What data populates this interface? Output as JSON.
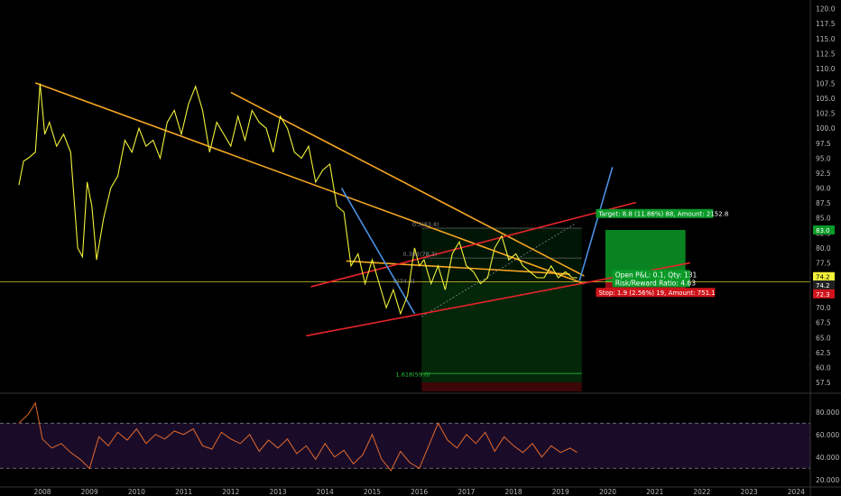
{
  "colors": {
    "background": "#000000",
    "price": "#f2f23a",
    "downtrend": "#f5a623",
    "channel": "#e8232a",
    "wave": "#4a90e2",
    "rsi": "#e4692b",
    "profit_zone": "#0b7a1f",
    "stop_zone": "#7a0b10",
    "horizontal_line": "#c9c92b"
  },
  "chart_data": [
    {
      "type": "line",
      "panel": "price",
      "ylim": [
        56,
        121
      ],
      "xlim": [
        2007.1,
        2024.3
      ],
      "y_ticks": [
        "120.0",
        "117.5",
        "115.0",
        "112.5",
        "110.0",
        "107.5",
        "105.0",
        "102.5",
        "100.0",
        "97.5",
        "95.0",
        "92.5",
        "90.0",
        "87.5",
        "85.0",
        "82.5",
        "80.0",
        "77.5",
        "75.0",
        "72.5",
        "70.0",
        "67.5",
        "65.0",
        "62.5",
        "60.0",
        "57.5"
      ],
      "y_tick_values": [
        120,
        117.5,
        115,
        112.5,
        110,
        107.5,
        105,
        102.5,
        100,
        97.5,
        95,
        92.5,
        90,
        87.5,
        85,
        82.5,
        80,
        77.5,
        75,
        72.5,
        70,
        67.5,
        65,
        62.5,
        60,
        57.5
      ],
      "x_ticks": [
        "2008",
        "2009",
        "2010",
        "2011",
        "2012",
        "2013",
        "2014",
        "2015",
        "2016",
        "2017",
        "2018",
        "2019",
        "2020",
        "2021",
        "2022",
        "2023",
        "2024"
      ],
      "x_tick_values": [
        2008,
        2009,
        2010,
        2011,
        2012,
        2013,
        2014,
        2015,
        2016,
        2017,
        2018,
        2019,
        2020,
        2021,
        2022,
        2023,
        2024
      ],
      "series": [
        {
          "x": [
            2007.5,
            2007.6,
            2007.7,
            2007.85,
            2007.95,
            2008.05,
            2008.15,
            2008.3,
            2008.45,
            2008.6,
            2008.75,
            2008.85,
            2008.95,
            2009.05,
            2009.15,
            2009.3,
            2009.45,
            2009.6,
            2009.75,
            2009.9,
            2010.05,
            2010.2,
            2010.35,
            2010.5,
            2010.65,
            2010.8,
            2010.95,
            2011.1,
            2011.25,
            2011.4,
            2011.55,
            2011.7,
            2011.85,
            2012.0,
            2012.15,
            2012.3,
            2012.45,
            2012.6,
            2012.75,
            2012.9,
            2013.05,
            2013.2,
            2013.35,
            2013.5,
            2013.65,
            2013.8,
            2013.95,
            2014.1,
            2014.25,
            2014.4,
            2014.55,
            2014.7,
            2014.85,
            2015.0,
            2015.15,
            2015.3,
            2015.45,
            2015.6,
            2015.75,
            2015.9,
            2016.0,
            2016.1,
            2016.25,
            2016.4,
            2016.55,
            2016.7,
            2016.85,
            2017.0,
            2017.15,
            2017.3,
            2017.45,
            2017.6,
            2017.75,
            2017.9,
            2018.05,
            2018.2,
            2018.35,
            2018.5,
            2018.65,
            2018.8,
            2018.95,
            2019.1,
            2019.25,
            2019.35
          ],
          "y": [
            90.5,
            94.5,
            95,
            96,
            107.5,
            99,
            101,
            97,
            99,
            96,
            80,
            78.5,
            91,
            87,
            78,
            85,
            90,
            92,
            98,
            96,
            100,
            97,
            98,
            95,
            101,
            103,
            99,
            104,
            107,
            103,
            96,
            101,
            99,
            97,
            102,
            98,
            103,
            101,
            100,
            96,
            102,
            100,
            96,
            95,
            97,
            91,
            93,
            94,
            87,
            86,
            77,
            79,
            74,
            78,
            74,
            70,
            73,
            69,
            72,
            80,
            77,
            78,
            74,
            77,
            73,
            79,
            81,
            77,
            76,
            74,
            75,
            80,
            82,
            78,
            79,
            77,
            76,
            75,
            75,
            77,
            75,
            76,
            75,
            75
          ]
        }
      ],
      "annotations": {
        "target_label": "Target: 8.8 (11.86%) 88, Amount: 2152.8",
        "open_pl_label": "Open P&L: 0.1, Qty: 131",
        "rr_label": "Risk/Reward Ratio: 4.63",
        "stop_label": "Stop: 1.9 (2.56%) 19, Amount: 751.1",
        "fib_1618": "1.618(59.0)",
        "fib_top": "0.5(83.8)",
        "fib_mid": "0.382(78.3)",
        "fib_low": "0(74.3)",
        "target_price": "83.0",
        "current_price": "74.2",
        "entry_price": "74.2",
        "stop_price": "72.3"
      }
    },
    {
      "type": "line",
      "panel": "rsi",
      "ylim": [
        15,
        95
      ],
      "y_ticks": [
        "80.000",
        "60.000",
        "40.000",
        "20.000"
      ],
      "y_tick_values": [
        80,
        60,
        40,
        20
      ],
      "levels": [
        70,
        30
      ],
      "series": [
        {
          "x": [
            2007.5,
            2007.7,
            2007.85,
            2008.0,
            2008.2,
            2008.4,
            2008.6,
            2008.8,
            2009.0,
            2009.2,
            2009.4,
            2009.6,
            2009.8,
            2010.0,
            2010.2,
            2010.4,
            2010.6,
            2010.8,
            2011.0,
            2011.2,
            2011.4,
            2011.6,
            2011.8,
            2012.0,
            2012.2,
            2012.4,
            2012.6,
            2012.8,
            2013.0,
            2013.2,
            2013.4,
            2013.6,
            2013.8,
            2014.0,
            2014.2,
            2014.4,
            2014.6,
            2014.8,
            2015.0,
            2015.2,
            2015.4,
            2015.6,
            2015.8,
            2016.0,
            2016.2,
            2016.4,
            2016.6,
            2016.8,
            2017.0,
            2017.2,
            2017.4,
            2017.6,
            2017.8,
            2018.0,
            2018.2,
            2018.4,
            2018.6,
            2018.8,
            2019.0,
            2019.2,
            2019.35
          ],
          "y": [
            70,
            78,
            88,
            56,
            48,
            52,
            44,
            38,
            30,
            58,
            50,
            62,
            55,
            65,
            52,
            60,
            56,
            63,
            60,
            65,
            50,
            47,
            62,
            56,
            52,
            60,
            45,
            55,
            48,
            56,
            43,
            50,
            38,
            52,
            40,
            46,
            34,
            42,
            60,
            38,
            28,
            45,
            35,
            30,
            50,
            70,
            55,
            48,
            60,
            52,
            62,
            45,
            58,
            50,
            44,
            52,
            40,
            50,
            44,
            48,
            44
          ]
        }
      ]
    }
  ]
}
